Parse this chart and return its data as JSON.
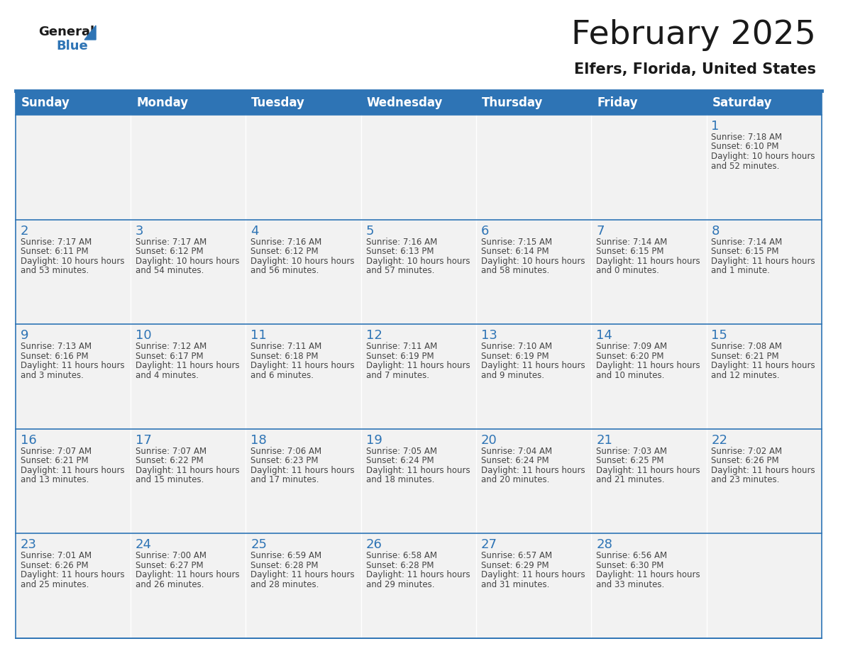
{
  "title": "February 2025",
  "subtitle": "Elfers, Florida, United States",
  "header_bg_color": "#2E74B5",
  "header_text_color": "#FFFFFF",
  "cell_bg_color": "#F2F2F2",
  "day_number_color": "#2E74B5",
  "text_color": "#444444",
  "border_color": "#2E74B5",
  "days_of_week": [
    "Sunday",
    "Monday",
    "Tuesday",
    "Wednesday",
    "Thursday",
    "Friday",
    "Saturday"
  ],
  "calendar_data": [
    [
      {
        "day": 0
      },
      {
        "day": 0
      },
      {
        "day": 0
      },
      {
        "day": 0
      },
      {
        "day": 0
      },
      {
        "day": 0
      },
      {
        "day": 1,
        "sunrise": "7:18 AM",
        "sunset": "6:10 PM",
        "daylight": "10 hours and 52 minutes."
      }
    ],
    [
      {
        "day": 2,
        "sunrise": "7:17 AM",
        "sunset": "6:11 PM",
        "daylight": "10 hours and 53 minutes."
      },
      {
        "day": 3,
        "sunrise": "7:17 AM",
        "sunset": "6:12 PM",
        "daylight": "10 hours and 54 minutes."
      },
      {
        "day": 4,
        "sunrise": "7:16 AM",
        "sunset": "6:12 PM",
        "daylight": "10 hours and 56 minutes."
      },
      {
        "day": 5,
        "sunrise": "7:16 AM",
        "sunset": "6:13 PM",
        "daylight": "10 hours and 57 minutes."
      },
      {
        "day": 6,
        "sunrise": "7:15 AM",
        "sunset": "6:14 PM",
        "daylight": "10 hours and 58 minutes."
      },
      {
        "day": 7,
        "sunrise": "7:14 AM",
        "sunset": "6:15 PM",
        "daylight": "11 hours and 0 minutes."
      },
      {
        "day": 8,
        "sunrise": "7:14 AM",
        "sunset": "6:15 PM",
        "daylight": "11 hours and 1 minute."
      }
    ],
    [
      {
        "day": 9,
        "sunrise": "7:13 AM",
        "sunset": "6:16 PM",
        "daylight": "11 hours and 3 minutes."
      },
      {
        "day": 10,
        "sunrise": "7:12 AM",
        "sunset": "6:17 PM",
        "daylight": "11 hours and 4 minutes."
      },
      {
        "day": 11,
        "sunrise": "7:11 AM",
        "sunset": "6:18 PM",
        "daylight": "11 hours and 6 minutes."
      },
      {
        "day": 12,
        "sunrise": "7:11 AM",
        "sunset": "6:19 PM",
        "daylight": "11 hours and 7 minutes."
      },
      {
        "day": 13,
        "sunrise": "7:10 AM",
        "sunset": "6:19 PM",
        "daylight": "11 hours and 9 minutes."
      },
      {
        "day": 14,
        "sunrise": "7:09 AM",
        "sunset": "6:20 PM",
        "daylight": "11 hours and 10 minutes."
      },
      {
        "day": 15,
        "sunrise": "7:08 AM",
        "sunset": "6:21 PM",
        "daylight": "11 hours and 12 minutes."
      }
    ],
    [
      {
        "day": 16,
        "sunrise": "7:07 AM",
        "sunset": "6:21 PM",
        "daylight": "11 hours and 13 minutes."
      },
      {
        "day": 17,
        "sunrise": "7:07 AM",
        "sunset": "6:22 PM",
        "daylight": "11 hours and 15 minutes."
      },
      {
        "day": 18,
        "sunrise": "7:06 AM",
        "sunset": "6:23 PM",
        "daylight": "11 hours and 17 minutes."
      },
      {
        "day": 19,
        "sunrise": "7:05 AM",
        "sunset": "6:24 PM",
        "daylight": "11 hours and 18 minutes."
      },
      {
        "day": 20,
        "sunrise": "7:04 AM",
        "sunset": "6:24 PM",
        "daylight": "11 hours and 20 minutes."
      },
      {
        "day": 21,
        "sunrise": "7:03 AM",
        "sunset": "6:25 PM",
        "daylight": "11 hours and 21 minutes."
      },
      {
        "day": 22,
        "sunrise": "7:02 AM",
        "sunset": "6:26 PM",
        "daylight": "11 hours and 23 minutes."
      }
    ],
    [
      {
        "day": 23,
        "sunrise": "7:01 AM",
        "sunset": "6:26 PM",
        "daylight": "11 hours and 25 minutes."
      },
      {
        "day": 24,
        "sunrise": "7:00 AM",
        "sunset": "6:27 PM",
        "daylight": "11 hours and 26 minutes."
      },
      {
        "day": 25,
        "sunrise": "6:59 AM",
        "sunset": "6:28 PM",
        "daylight": "11 hours and 28 minutes."
      },
      {
        "day": 26,
        "sunrise": "6:58 AM",
        "sunset": "6:28 PM",
        "daylight": "11 hours and 29 minutes."
      },
      {
        "day": 27,
        "sunrise": "6:57 AM",
        "sunset": "6:29 PM",
        "daylight": "11 hours and 31 minutes."
      },
      {
        "day": 28,
        "sunrise": "6:56 AM",
        "sunset": "6:30 PM",
        "daylight": "11 hours and 33 minutes."
      },
      {
        "day": 0
      }
    ]
  ],
  "header_font_size": 12,
  "day_number_font_size": 13,
  "cell_text_font_size": 8.5,
  "title_font_size": 34,
  "subtitle_font_size": 15
}
